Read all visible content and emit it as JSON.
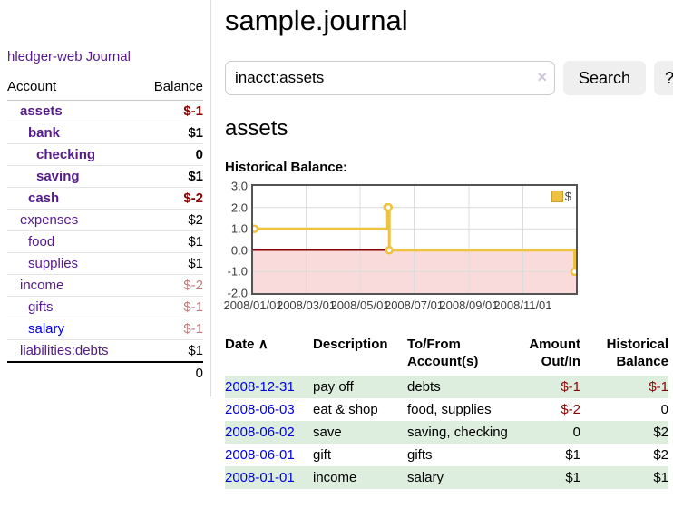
{
  "colors": {
    "link_purple": "#551a8b",
    "link_blue": "#0000e0",
    "negative_strong": "#8b0000",
    "negative_soft": "#c07c7c",
    "row_green": "#deeede",
    "chart_series_gold": "#edc240",
    "chart_negative_fill": "#fadbdb",
    "chart_zero_line": "#8b0000"
  },
  "sidebar": {
    "brand": "hledger-web",
    "journal_link": "Journal",
    "table": {
      "account_header": "Account",
      "balance_header": "Balance",
      "rows": [
        {
          "name": "assets",
          "balance": "$-1"
        },
        {
          "name": "bank",
          "balance": "$1"
        },
        {
          "name": "checking",
          "balance": "0"
        },
        {
          "name": "saving",
          "balance": "$1"
        },
        {
          "name": "cash",
          "balance": "$-2"
        },
        {
          "name": "expenses",
          "balance": "$2"
        },
        {
          "name": "food",
          "balance": "$1"
        },
        {
          "name": "supplies",
          "balance": "$1"
        },
        {
          "name": "income",
          "balance": "$-2"
        },
        {
          "name": "gifts",
          "balance": "$-1"
        },
        {
          "name": "salary",
          "balance": "$-1"
        },
        {
          "name": "liabilities:debts",
          "balance": "$1"
        }
      ],
      "total": "0"
    }
  },
  "header": {
    "title": "sample.journal"
  },
  "search": {
    "query": "inacct:assets",
    "clear_icon": "×",
    "button_label": "Search",
    "help_label": "?"
  },
  "account_page": {
    "heading": "assets",
    "chart_label": "Historical Balance:"
  },
  "chart_data": {
    "type": "line",
    "title": "Historical Balance",
    "step": true,
    "x_range": [
      "2008-01-01",
      "2008-12-31"
    ],
    "ylim": [
      -2,
      3
    ],
    "x_ticks": [
      {
        "label": "2008/01/01",
        "date": "2008-01-01"
      },
      {
        "label": "2008/03/01",
        "date": "2008-03-01"
      },
      {
        "label": "2008/05/01",
        "date": "2008-05-01"
      },
      {
        "label": "2008/07/01",
        "date": "2008-07-01"
      },
      {
        "label": "2008/09/01",
        "date": "2008-09-01"
      },
      {
        "label": "2008/11/01",
        "date": "2008-11-01"
      }
    ],
    "y_ticks": [
      {
        "label": "3.0",
        "value": 3
      },
      {
        "label": "2.0",
        "value": 2
      },
      {
        "label": "1.0",
        "value": 1
      },
      {
        "label": "0.0",
        "value": 0
      },
      {
        "label": "-1.0",
        "value": -1
      },
      {
        "label": "-2.0",
        "value": -2
      }
    ],
    "series": [
      {
        "name": "$",
        "color": "#edc240",
        "points": [
          [
            "2008-01-01",
            1
          ],
          [
            "2008-06-01",
            2
          ],
          [
            "2008-06-02",
            2
          ],
          [
            "2008-06-03",
            0
          ],
          [
            "2008-12-31",
            -1
          ]
        ]
      }
    ],
    "legend_position": "top-right",
    "grid": true,
    "negative_region_color": "#fadbdb",
    "zero_line_color": "#8b0000",
    "gridline_color": "#dcdcdc"
  },
  "table": {
    "headers": {
      "date": "Date",
      "sort_icon": "∧",
      "description": "Description",
      "accounts": "To/From Account(s)",
      "amount": "Amount Out/In",
      "balance": "Historical Balance"
    },
    "rows": [
      {
        "date": "2008-12-31",
        "description": "pay off",
        "accounts": "debts",
        "amount": "$-1",
        "balance": "$-1"
      },
      {
        "date": "2008-06-03",
        "description": "eat & shop",
        "accounts": "food, supplies",
        "amount": "$-2",
        "balance": "0"
      },
      {
        "date": "2008-06-02",
        "description": "save",
        "accounts": "saving, checking",
        "amount": "0",
        "balance": "$2"
      },
      {
        "date": "2008-06-01",
        "description": "gift",
        "accounts": "gifts",
        "amount": "$1",
        "balance": "$2"
      },
      {
        "date": "2008-01-01",
        "description": "income",
        "accounts": "salary",
        "amount": "$1",
        "balance": "$1"
      }
    ]
  }
}
